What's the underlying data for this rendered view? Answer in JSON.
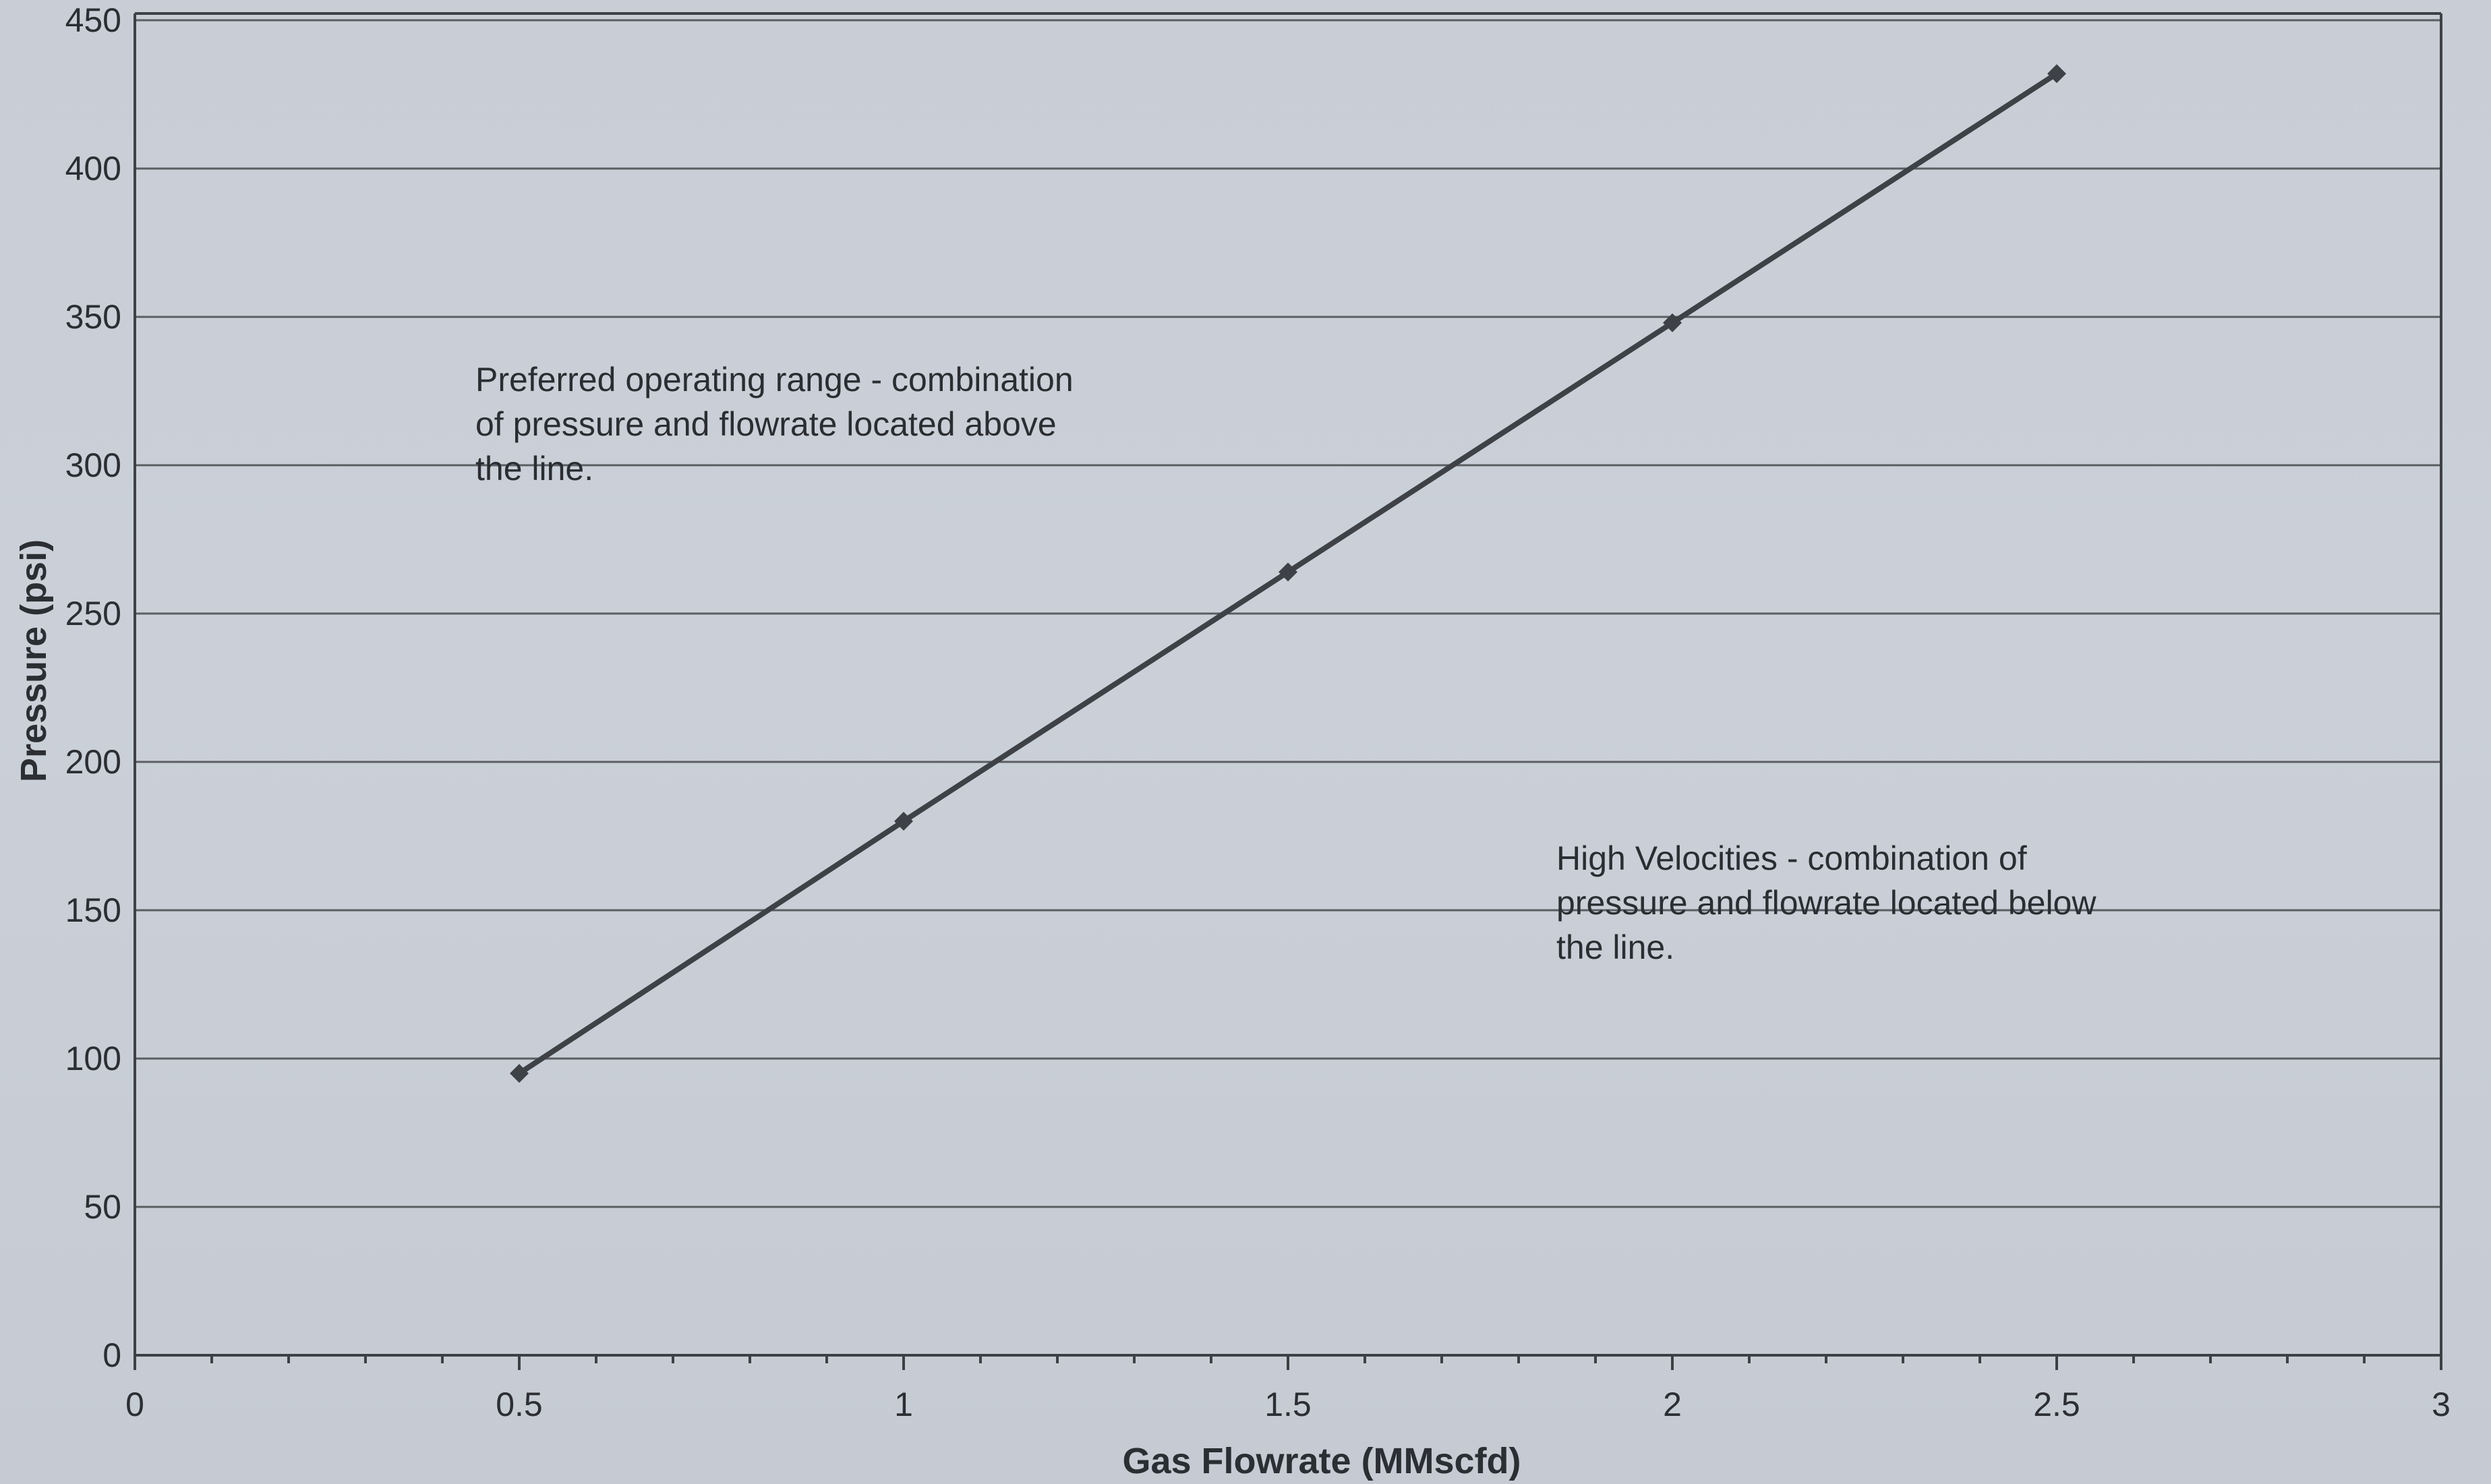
{
  "chart_data": {
    "type": "line",
    "title": "",
    "xlabel": "Gas Flowrate (MMscfd)",
    "ylabel": "Pressure (psi)",
    "xlim": [
      0,
      3
    ],
    "ylim": [
      0,
      450
    ],
    "x_ticks": [
      "0",
      "0.5",
      "1",
      "1.5",
      "2",
      "2.5",
      "3"
    ],
    "y_ticks": [
      "0",
      "50",
      "100",
      "150",
      "200",
      "250",
      "300",
      "350",
      "400",
      "450"
    ],
    "grid": true,
    "legend": "none",
    "series": [
      {
        "x": [
          0.5,
          1.0,
          1.5,
          2.0,
          2.5
        ],
        "y": [
          95,
          180,
          264,
          348,
          432
        ]
      }
    ],
    "annotations": [
      {
        "lines": [
          "Preferred operating range - combination",
          "of pressure and flowrate located above",
          "the line."
        ]
      },
      {
        "lines": [
          "High Velocities - combination of",
          "pressure and flowrate located below",
          "the line."
        ]
      }
    ],
    "colors": {
      "background": "#c9ced6",
      "line": "#3e4146",
      "grid": "#5a5e63",
      "text": "#2b2e33"
    }
  }
}
